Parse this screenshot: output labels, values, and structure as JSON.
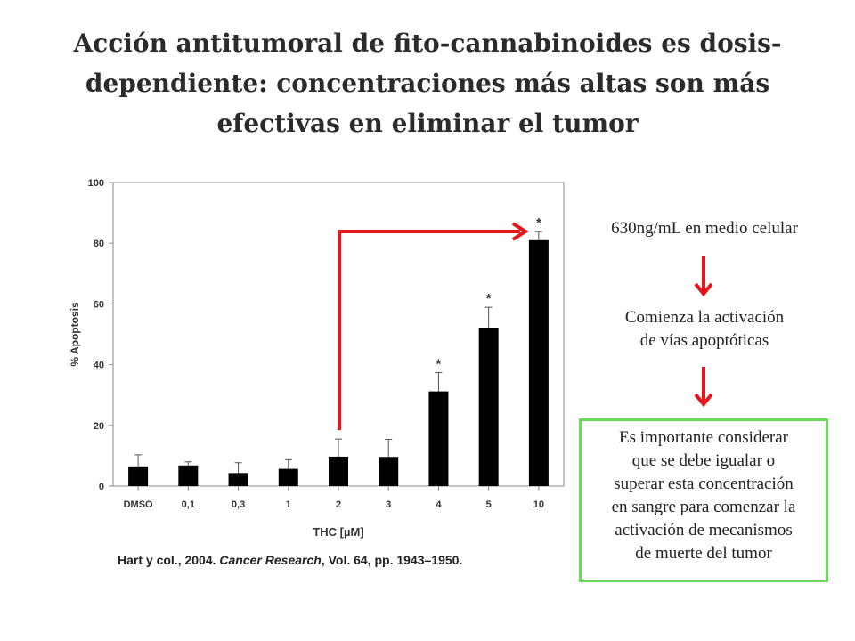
{
  "title": {
    "lines": [
      "Acción antitumoral de fito-cannabinoides es dosis-",
      "dependiente: concentraciones más altas son más",
      "efectivas en eliminar el tumor"
    ]
  },
  "chart_data": {
    "type": "bar",
    "categories": [
      "DMSO",
      "0,1",
      "0,3",
      "1",
      "2",
      "3",
      "4",
      "5",
      "10"
    ],
    "values": [
      6.5,
      6.8,
      4.3,
      5.7,
      9.7,
      9.6,
      31.2,
      52.2,
      81.0
    ],
    "errors": [
      3.8,
      1.2,
      3.4,
      3.0,
      5.8,
      5.8,
      6.2,
      6.7,
      2.8
    ],
    "significance": [
      "",
      "",
      "",
      "",
      "",
      "",
      "*",
      "*",
      "*"
    ],
    "xlabel": "THC [µM]",
    "ylabel": "% Apoptosis",
    "ylim": [
      0,
      100
    ],
    "yticks": [
      0,
      20,
      40,
      60,
      80,
      100
    ],
    "grid": false,
    "annotation": {
      "type": "arrow",
      "from_category": "2",
      "to_category": "10",
      "color": "#e8141b"
    }
  },
  "citation": {
    "authors": "Hart y col., 2004.",
    "journal": "Cancer Research",
    "details": ", Vol. 64, pp. 1943–1950."
  },
  "sidebar": {
    "step1": "630ng/mL en medio celular",
    "step2_lines": [
      "Comienza la activación",
      "de vías apoptóticas"
    ],
    "note_lines": [
      "Es importante considerar",
      "que se debe igualar o",
      "superar esta concentración",
      "en sangre para comenzar la",
      "activación de mecanismos",
      "de muerte del tumor"
    ]
  },
  "colors": {
    "bar": "#000000",
    "arrow": "#e8141b",
    "note_border": "#66dd55"
  }
}
